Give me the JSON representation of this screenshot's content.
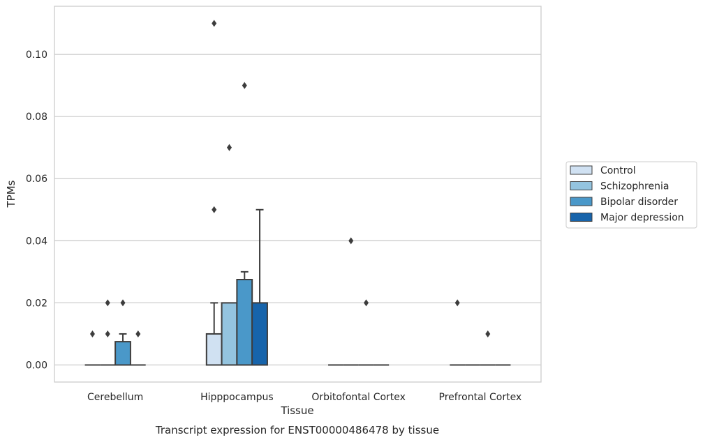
{
  "chart_data": {
    "type": "box",
    "title": "Transcript expression for ENST00000486478 by tissue",
    "xlabel": "Tissue",
    "ylabel": "TPMs",
    "ylim": [
      -0.0055,
      0.1155
    ],
    "yticks": [
      0.0,
      0.02,
      0.04,
      0.06,
      0.08,
      0.1
    ],
    "ytick_labels": [
      "0.00",
      "0.02",
      "0.04",
      "0.06",
      "0.08",
      "0.10"
    ],
    "grid": "horizontal",
    "legend_position": "right",
    "categories": [
      "Cerebellum",
      "Hipppocampus",
      "Orbitofontal Cortex",
      "Prefrontal Cortex"
    ],
    "series": [
      {
        "name": "Control",
        "color": "#d0e1f2",
        "boxes": [
          {
            "q1": 0,
            "median": 0,
            "q3": 0,
            "whisker_low": 0,
            "whisker_high": 0,
            "outliers": [
              0.01
            ]
          },
          {
            "q1": 0,
            "median": 0,
            "q3": 0.01,
            "whisker_low": 0,
            "whisker_high": 0.02,
            "outliers": [
              0.05,
              0.11
            ]
          },
          {
            "q1": 0,
            "median": 0,
            "q3": 0,
            "whisker_low": 0,
            "whisker_high": 0,
            "outliers": []
          },
          {
            "q1": 0,
            "median": 0,
            "q3": 0,
            "whisker_low": 0,
            "whisker_high": 0,
            "outliers": [
              0.02
            ]
          }
        ]
      },
      {
        "name": "Schizophrenia",
        "color": "#94c4df",
        "boxes": [
          {
            "q1": 0,
            "median": 0,
            "q3": 0,
            "whisker_low": 0,
            "whisker_high": 0,
            "outliers": [
              0.01,
              0.02
            ]
          },
          {
            "q1": 0,
            "median": 0,
            "q3": 0.02,
            "whisker_low": 0,
            "whisker_high": 0.02,
            "outliers": [
              0.07
            ]
          },
          {
            "q1": 0,
            "median": 0,
            "q3": 0,
            "whisker_low": 0,
            "whisker_high": 0,
            "outliers": [
              0.04
            ]
          },
          {
            "q1": 0,
            "median": 0,
            "q3": 0,
            "whisker_low": 0,
            "whisker_high": 0,
            "outliers": []
          }
        ]
      },
      {
        "name": "Bipolar disorder",
        "color": "#4a98c9",
        "boxes": [
          {
            "q1": 0,
            "median": 0,
            "q3": 0.0075,
            "whisker_low": 0,
            "whisker_high": 0.01,
            "outliers": [
              0.02
            ]
          },
          {
            "q1": 0,
            "median": 0,
            "q3": 0.0275,
            "whisker_low": 0,
            "whisker_high": 0.03,
            "outliers": [
              0.09
            ]
          },
          {
            "q1": 0,
            "median": 0,
            "q3": 0,
            "whisker_low": 0,
            "whisker_high": 0,
            "outliers": [
              0.02
            ]
          },
          {
            "q1": 0,
            "median": 0,
            "q3": 0,
            "whisker_low": 0,
            "whisker_high": 0,
            "outliers": [
              0.01
            ]
          }
        ]
      },
      {
        "name": "Major depression",
        "color": "#1764ab",
        "boxes": [
          {
            "q1": 0,
            "median": 0,
            "q3": 0,
            "whisker_low": 0,
            "whisker_high": 0,
            "outliers": [
              0.01
            ]
          },
          {
            "q1": 0,
            "median": 0,
            "q3": 0.02,
            "whisker_low": 0,
            "whisker_high": 0.05,
            "outliers": []
          },
          {
            "q1": 0,
            "median": 0,
            "q3": 0,
            "whisker_low": 0,
            "whisker_high": 0,
            "outliers": []
          },
          {
            "q1": 0,
            "median": 0,
            "q3": 0,
            "whisker_low": 0,
            "whisker_high": 0,
            "outliers": []
          }
        ]
      }
    ]
  }
}
